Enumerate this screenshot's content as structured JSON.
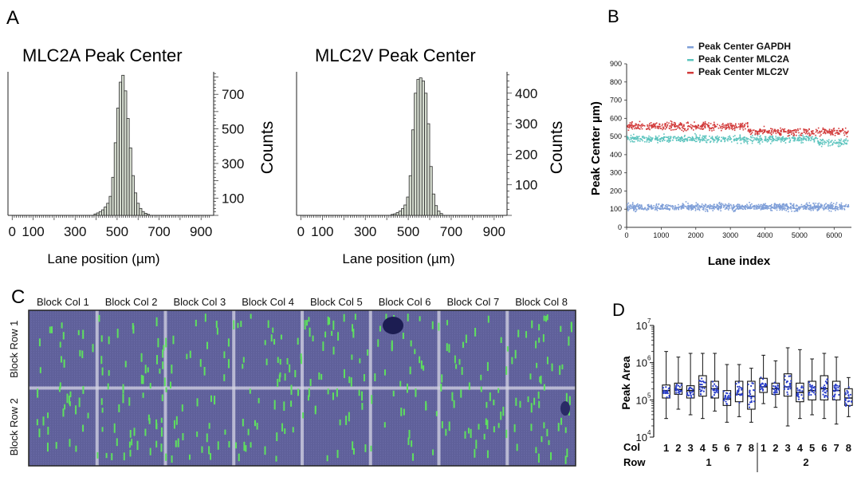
{
  "panels": {
    "a": "A",
    "b": "B",
    "c": "C",
    "d": "D"
  },
  "chart_data": [
    {
      "id": "mlc2a",
      "type": "bar",
      "title": "MLC2A Peak Center",
      "xlabel": "Lane position (µm)",
      "ylabel": "Counts",
      "xlim": [
        -20,
        960
      ],
      "ylim": [
        0,
        830
      ],
      "xticks": [
        0,
        100,
        300,
        500,
        700,
        900
      ],
      "yticks": [
        100,
        300,
        500,
        700
      ],
      "bin_width": 12,
      "bins": [
        [
          390,
          8
        ],
        [
          402,
          14
        ],
        [
          414,
          22
        ],
        [
          426,
          32
        ],
        [
          438,
          48
        ],
        [
          450,
          70
        ],
        [
          462,
          110
        ],
        [
          474,
          220
        ],
        [
          486,
          420
        ],
        [
          498,
          620
        ],
        [
          510,
          770
        ],
        [
          522,
          810
        ],
        [
          534,
          720
        ],
        [
          546,
          560
        ],
        [
          558,
          390
        ],
        [
          570,
          230
        ],
        [
          582,
          130
        ],
        [
          594,
          70
        ],
        [
          606,
          40
        ],
        [
          618,
          22
        ],
        [
          630,
          12
        ],
        [
          642,
          6
        ]
      ]
    },
    {
      "id": "mlc2v",
      "type": "bar",
      "title": "MLC2V Peak Center",
      "xlabel": "Lane position (µm)",
      "ylabel": "Counts",
      "xlim": [
        -20,
        960
      ],
      "ylim": [
        0,
        470
      ],
      "xticks": [
        0,
        100,
        300,
        500,
        700,
        900
      ],
      "yticks": [
        100,
        200,
        300,
        400
      ],
      "bin_width": 12,
      "bins": [
        [
          420,
          3
        ],
        [
          432,
          5
        ],
        [
          444,
          9
        ],
        [
          456,
          14
        ],
        [
          468,
          22
        ],
        [
          480,
          34
        ],
        [
          492,
          60
        ],
        [
          504,
          130
        ],
        [
          516,
          280
        ],
        [
          528,
          400
        ],
        [
          540,
          445
        ],
        [
          552,
          450
        ],
        [
          564,
          440
        ],
        [
          576,
          400
        ],
        [
          588,
          300
        ],
        [
          600,
          160
        ],
        [
          612,
          70
        ],
        [
          624,
          32
        ],
        [
          636,
          14
        ],
        [
          648,
          6
        ]
      ]
    },
    {
      "id": "scatter",
      "type": "scatter",
      "xlabel": "Lane index",
      "ylabel": "Peak Center µm)",
      "xlim": [
        0,
        6500
      ],
      "ylim": [
        0,
        900
      ],
      "xticks": [
        0,
        1000,
        2000,
        3000,
        4000,
        5000,
        6000
      ],
      "yticks": [
        0,
        100,
        200,
        300,
        400,
        500,
        600,
        700,
        800,
        900
      ],
      "legend": "top-right",
      "series": [
        {
          "name": "Peak Center GAPDH",
          "color": "#7f9fd8",
          "mean": 115,
          "spread": 45
        },
        {
          "name": "Peak Center MLC2A",
          "color": "#5cc4be",
          "mean": 490,
          "spread": 55
        },
        {
          "name": "Peak Center MLC2V",
          "color": "#d23b3b",
          "mean": 560,
          "spread": 60
        }
      ]
    },
    {
      "id": "boxplot",
      "type": "box",
      "ylabel": "Peak Area",
      "yscale": "log",
      "ylim_exp": [
        4,
        7
      ],
      "yticks": [
        "10",
        "10",
        "10",
        "10"
      ],
      "ytick_exps": [
        "4",
        "5",
        "6",
        "7"
      ],
      "row_label_col": "Col",
      "row_label_row": "Row",
      "groups": [
        {
          "row": "1",
          "cols": [
            "1",
            "2",
            "3",
            "4",
            "5",
            "6",
            "7",
            "8"
          ]
        },
        {
          "row": "2",
          "cols": [
            "1",
            "2",
            "3",
            "4",
            "5",
            "6",
            "7",
            "8"
          ]
        }
      ],
      "boxes": [
        {
          "min": 4.5,
          "q1": 5.05,
          "med": 5.25,
          "q3": 5.4,
          "max": 6.3
        },
        {
          "min": 4.75,
          "q1": 5.15,
          "med": 5.28,
          "q3": 5.45,
          "max": 6.15
        },
        {
          "min": 4.6,
          "q1": 5.05,
          "med": 5.25,
          "q3": 5.38,
          "max": 6.25
        },
        {
          "min": 4.5,
          "q1": 5.1,
          "med": 5.35,
          "q3": 5.65,
          "max": 6.25
        },
        {
          "min": 4.7,
          "q1": 5.05,
          "med": 5.3,
          "q3": 5.5,
          "max": 6.25
        },
        {
          "min": 4.4,
          "q1": 4.85,
          "med": 5.02,
          "q3": 5.25,
          "max": 5.95
        },
        {
          "min": 4.55,
          "q1": 4.95,
          "med": 5.15,
          "q3": 5.5,
          "max": 5.95
        },
        {
          "min": 4.4,
          "q1": 4.75,
          "med": 5.1,
          "q3": 5.5,
          "max": 5.85
        },
        {
          "min": 4.9,
          "q1": 5.2,
          "med": 5.35,
          "q3": 5.58,
          "max": 6.2
        },
        {
          "min": 4.8,
          "q1": 5.15,
          "med": 5.3,
          "q3": 5.45,
          "max": 6.05
        },
        {
          "min": 4.3,
          "q1": 5.1,
          "med": 5.35,
          "q3": 5.7,
          "max": 6.4
        },
        {
          "min": 4.5,
          "q1": 4.95,
          "med": 5.2,
          "q3": 5.45,
          "max": 6.35
        },
        {
          "min": 4.6,
          "q1": 5.0,
          "med": 5.25,
          "q3": 5.5,
          "max": 6.1
        },
        {
          "min": 4.5,
          "q1": 5.0,
          "med": 5.3,
          "q3": 5.65,
          "max": 6.25
        },
        {
          "min": 4.35,
          "q1": 5.0,
          "med": 5.25,
          "q3": 5.5,
          "max": 6.15
        },
        {
          "min": 4.55,
          "q1": 4.85,
          "med": 5.05,
          "q3": 5.3,
          "max": 5.6
        }
      ]
    },
    {
      "id": "image",
      "type": "image",
      "col_labels": [
        "Block Col 1",
        "Block Col 2",
        "Block Col 3",
        "Block Col 4",
        "Block Col 5",
        "Block Col 6",
        "Block Col 7",
        "Block Col 8"
      ],
      "row_labels": [
        "Block Row 1",
        "Block Row 2"
      ]
    }
  ]
}
